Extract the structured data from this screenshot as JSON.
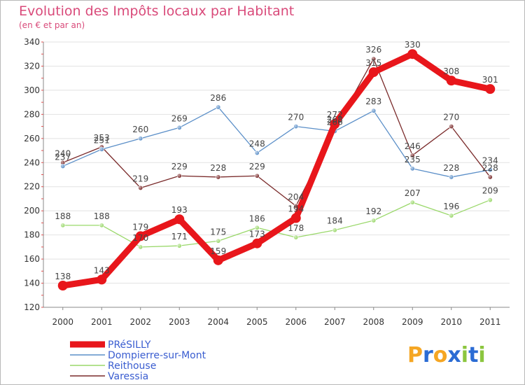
{
  "chart_data": {
    "type": "line",
    "title": "Evolution des Impôts locaux par Habitant",
    "subtitle": "(en € et par an)",
    "xlabel": "",
    "ylabel": "",
    "ylim": [
      120,
      340
    ],
    "yticks": [
      120,
      140,
      160,
      180,
      200,
      220,
      240,
      260,
      280,
      300,
      320,
      340
    ],
    "grid": "horizontal",
    "legend_position": "bottom-left",
    "categories": [
      "2000",
      "2001",
      "2002",
      "2003",
      "2004",
      "2005",
      "2006",
      "2007",
      "2008",
      "2009",
      "2010",
      "2011"
    ],
    "series": [
      {
        "name": "PRéSILLY",
        "color": "#e8161b",
        "values": [
          138,
          143,
          179,
          193,
          159,
          173,
          194,
          272,
          315,
          330,
          308,
          301
        ]
      },
      {
        "name": "Dompierre-sur-Mont",
        "color": "#5b8fc8",
        "values": [
          237,
          251,
          260,
          269,
          286,
          248,
          270,
          266,
          283,
          235,
          228,
          234
        ]
      },
      {
        "name": "Reithouse",
        "color": "#9ad86a",
        "values": [
          188,
          188,
          170,
          171,
          175,
          186,
          178,
          184,
          192,
          207,
          196,
          209
        ]
      },
      {
        "name": "Varessia",
        "color": "#7a2a2a",
        "values": [
          240,
          253,
          219,
          229,
          228,
          229,
          204,
          268,
          326,
          246,
          270,
          228
        ]
      }
    ]
  },
  "logo": {
    "text": "Proxiti",
    "letters": [
      "P",
      "r",
      "o",
      "x",
      "i",
      "t",
      "i"
    ]
  }
}
